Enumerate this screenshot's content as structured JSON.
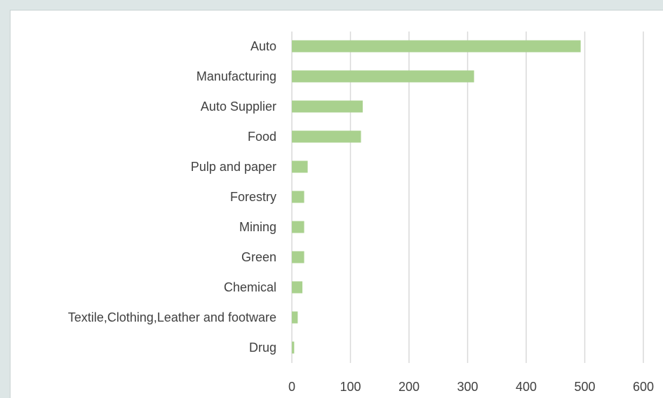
{
  "chart_data": {
    "type": "bar",
    "orientation": "horizontal",
    "categories": [
      "Auto",
      "Manufacturing",
      "Auto Supplier",
      "Food",
      "Pulp and paper",
      "Forestry",
      "Mining",
      "Green",
      "Chemical",
      "Textile,Clothing,Leather and footware",
      "Drug"
    ],
    "values": [
      493,
      311,
      121,
      118,
      27,
      21,
      21,
      21,
      18,
      10,
      4
    ],
    "xlim": [
      0,
      600
    ],
    "xticks": [
      "0",
      "100",
      "200",
      "300",
      "400",
      "500",
      "600"
    ],
    "grid": true,
    "bar_color": "#a9d18e",
    "grid_color": "#d9d9d9",
    "label_color": "#404040"
  }
}
